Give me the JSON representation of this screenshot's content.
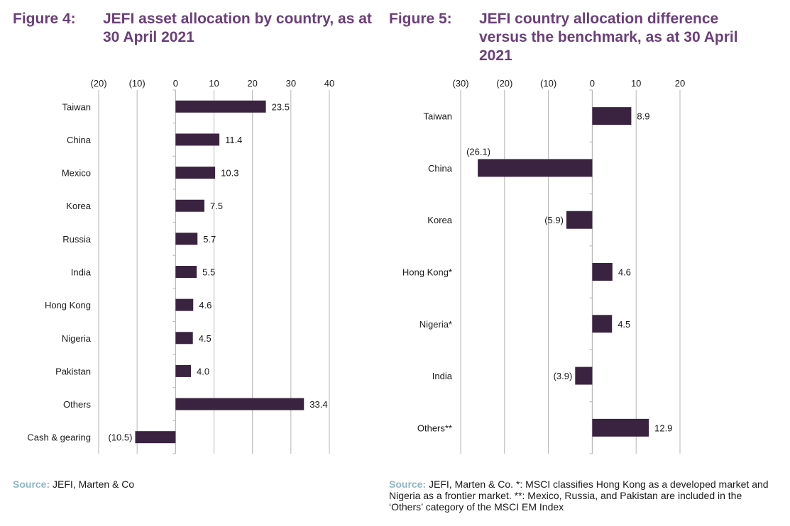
{
  "colors": {
    "bar": "#3a2340",
    "title": "#6b3f7a",
    "grid": "#b5b5b5",
    "source_label": "#8fb6c9"
  },
  "figure4": {
    "label": "Figure 4:",
    "title": "JEFI asset allocation by country, as at 30 April 2021",
    "source_label": "Source:",
    "source_text": " JEFI, Marten & Co"
  },
  "figure5": {
    "label": "Figure 5:",
    "title": "JEFI country allocation difference versus the benchmark, as at 30 April 2021",
    "source_label": "Source:",
    "source_text": " JEFI, Marten & Co. *: MSCI classifies Hong Kong as a developed market and Nigeria as a frontier market. **: Mexico, Russia, and Pakistan are included in the ‘Others’ category of the MSCI EM Index"
  },
  "chart_data": [
    {
      "type": "bar",
      "orientation": "horizontal",
      "title": "JEFI asset allocation by country, as at 30 April 2021",
      "categories": [
        "Taiwan",
        "China",
        "Mexico",
        "Korea",
        "Russia",
        "India",
        "Hong Kong",
        "Nigeria",
        "Pakistan",
        "Others",
        "Cash & gearing"
      ],
      "values": [
        23.5,
        11.4,
        10.3,
        7.5,
        5.7,
        5.5,
        4.6,
        4.5,
        4.0,
        33.4,
        -10.5
      ],
      "value_labels": [
        "23.5",
        "11.4",
        "10.3",
        "7.5",
        "5.7",
        "5.5",
        "4.6",
        "4.5",
        "4.0",
        "33.4",
        "(10.5)"
      ],
      "xlim": [
        -20,
        40
      ],
      "ticks": [
        -20,
        -10,
        0,
        10,
        20,
        30,
        40
      ],
      "tick_labels": [
        "(20)",
        "(10)",
        "0",
        "10",
        "20",
        "30",
        "40"
      ],
      "xaxis_position": "top",
      "grid": true
    },
    {
      "type": "bar",
      "orientation": "horizontal",
      "title": "JEFI country allocation difference versus the benchmark, as at 30 April 2021",
      "categories": [
        "Taiwan",
        "China",
        "Korea",
        "Hong Kong*",
        "Nigeria*",
        "India",
        "Others**"
      ],
      "values": [
        8.9,
        -26.1,
        -5.9,
        4.6,
        4.5,
        -3.9,
        12.9
      ],
      "value_labels": [
        "8.9",
        "(26.1)",
        "(5.9)",
        "4.6",
        "4.5",
        "(3.9)",
        "12.9"
      ],
      "xlim": [
        -30,
        20
      ],
      "ticks": [
        -30,
        -20,
        -10,
        0,
        10,
        20
      ],
      "tick_labels": [
        "(30)",
        "(20)",
        "(10)",
        "0",
        "10",
        "20"
      ],
      "xaxis_position": "top",
      "grid": true
    }
  ]
}
